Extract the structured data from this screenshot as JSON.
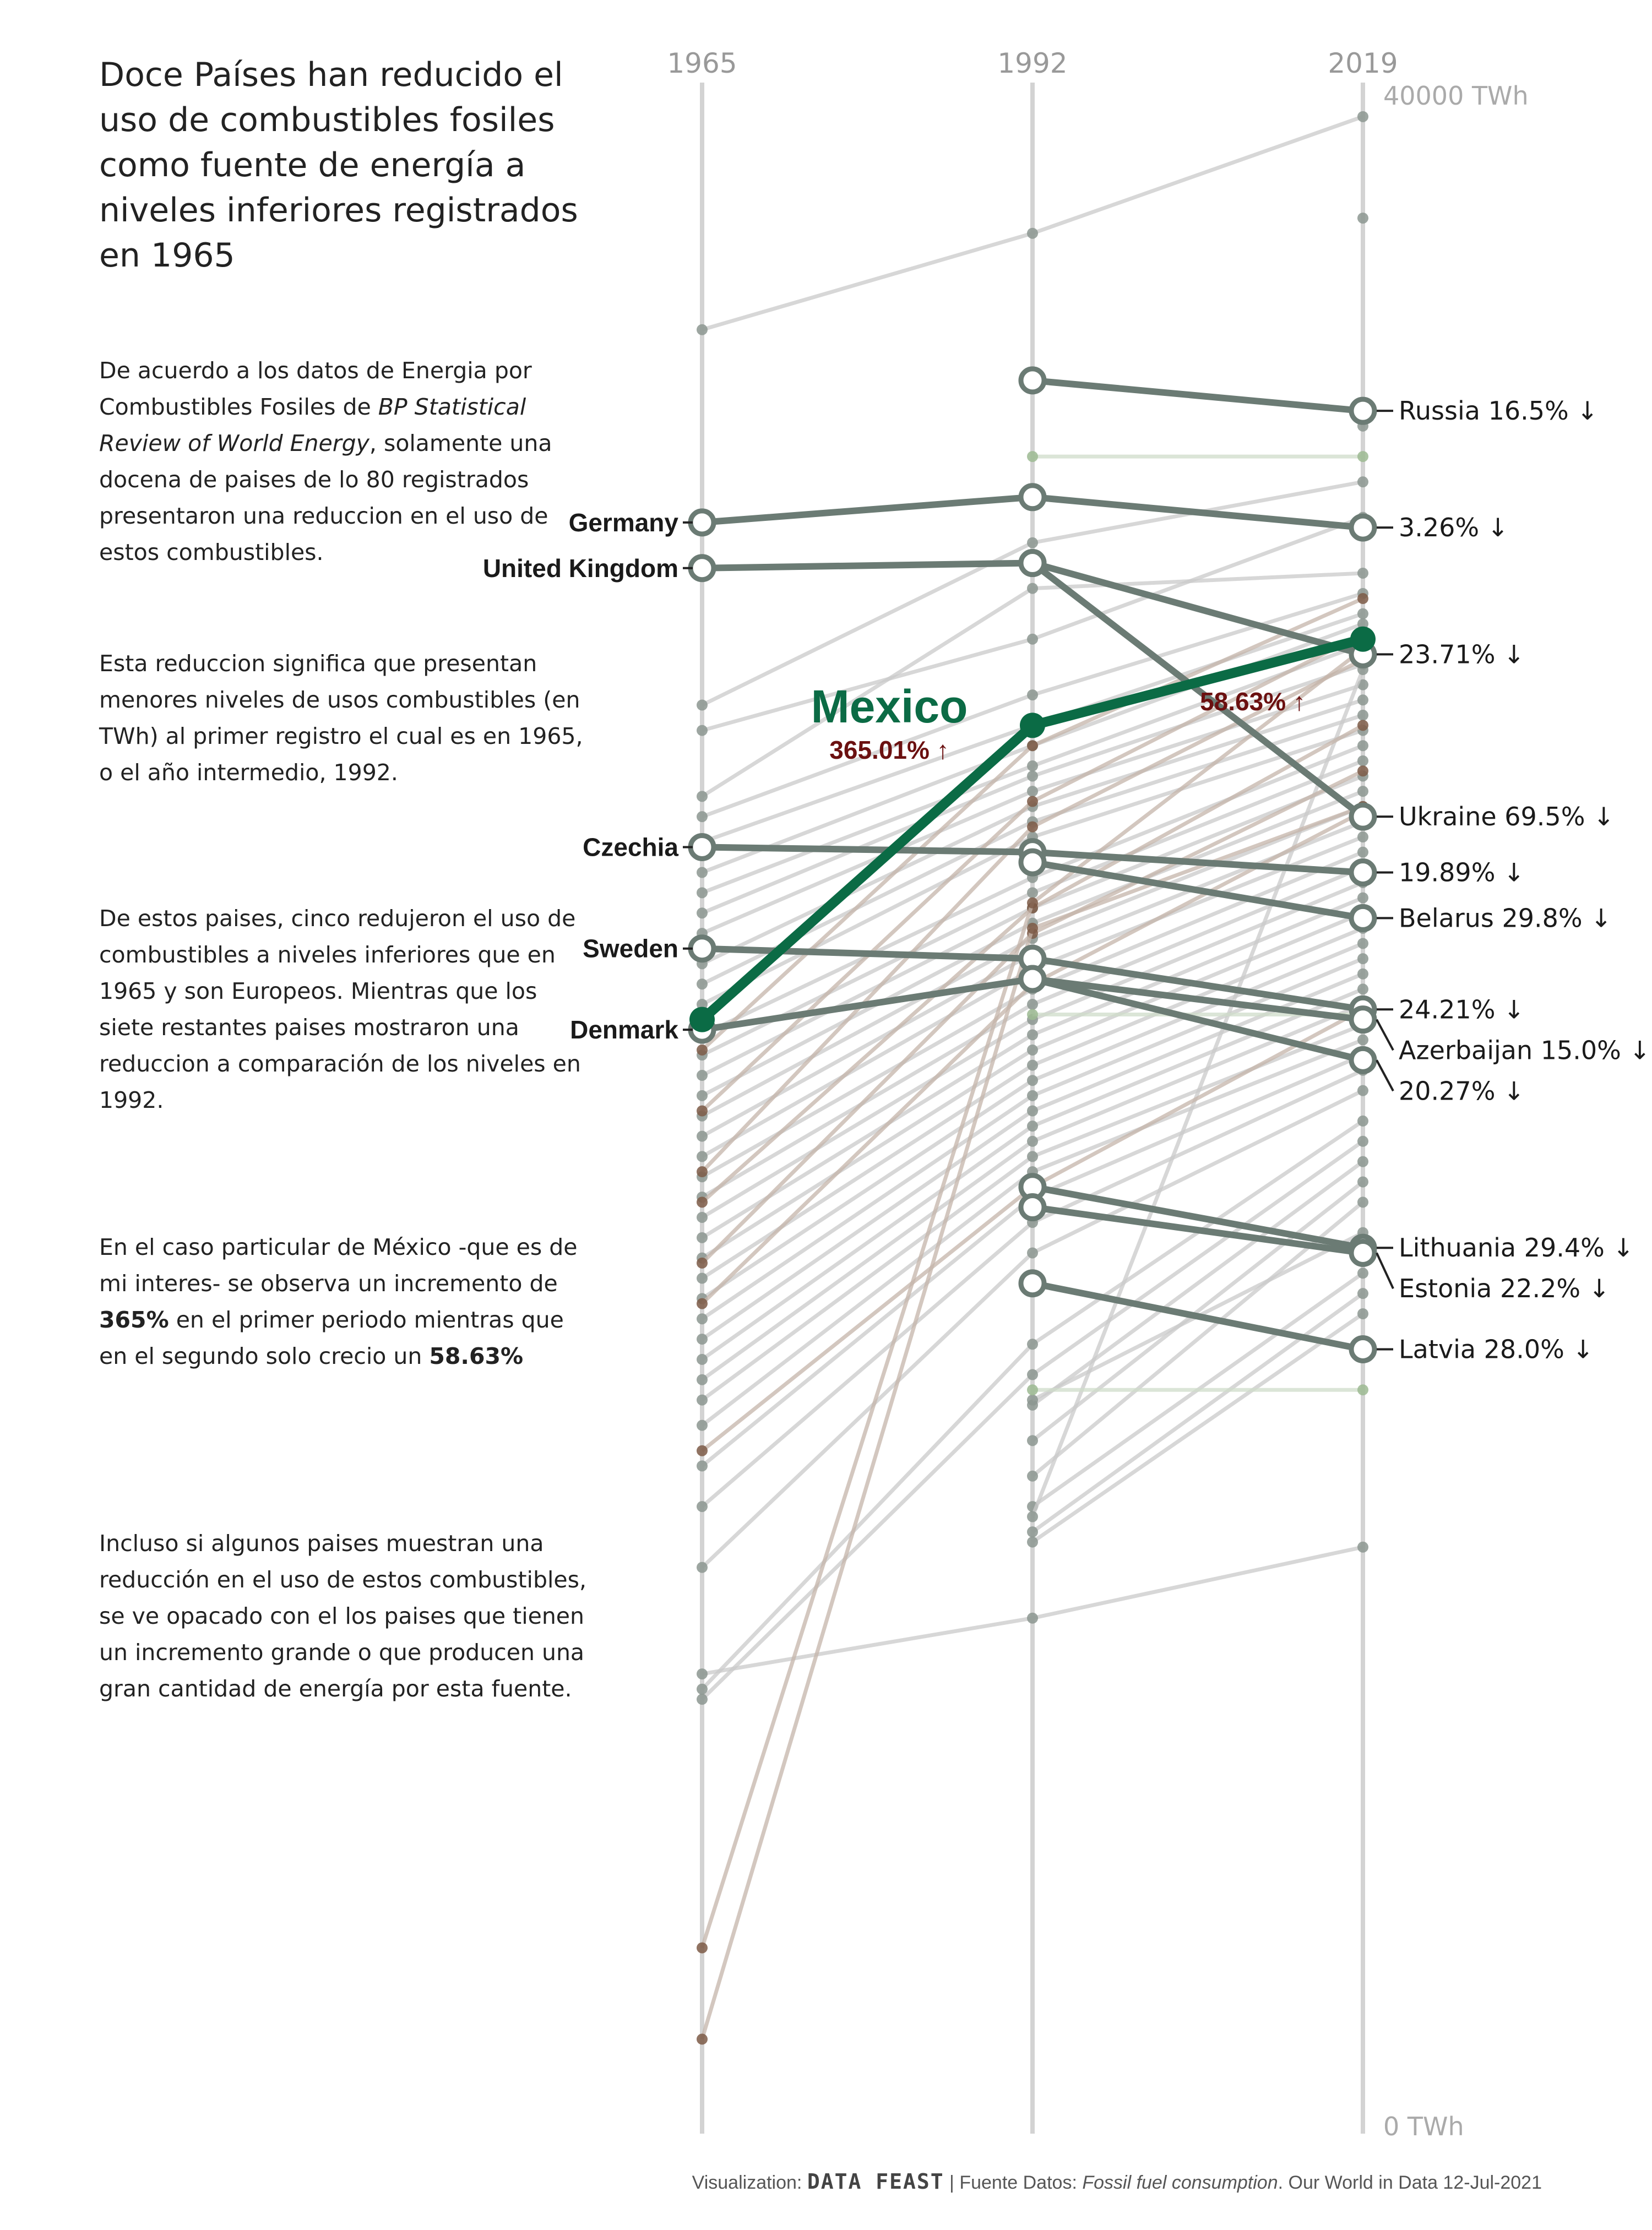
{
  "texts": {
    "title": "Doce Países han reducido el uso de combustibles fosiles como fuente de energía a niveles inferiores registrados en 1965",
    "p1": {
      "a": "De acuerdo a los datos de Energia por Combustibles Fosiles de ",
      "b": "BP Statistical Review of World Energy",
      "c": ", solamente una docena de paises de lo 80 registrados presentaron una reduccion en el uso de estos combustibles."
    },
    "p2": "Esta reduccion significa que presentan menores niveles de usos combustibles (en TWh) al primer registro el cual es en 1965, o el año intermedio, 1992.",
    "p3": "De estos paises, cinco redujeron el uso de combustibles a niveles inferiores que en 1965 y son Europeos. Mientras que los siete restantes paises mostraron una reduccion a comparación de los niveles en 1992.",
    "p4": {
      "a": "En el caso particular de México -que es de mi interes- se observa un incremento de ",
      "b": "365%",
      "c": " en el primer periodo mientras que en el segundo solo crecio un ",
      "d": "58.63%"
    },
    "p5": "Incluso si algunos paises muestran una reducción en el uso de estos combustibles, se ve opacado con el los paises que tienen un incremento grande o que producen una gran cantidad de energía por esta fuente.",
    "footer": {
      "prefix": "Visualization: ",
      "brand": "DATA FEAST",
      "mid": " | Fuente Datos: ",
      "source": "Fossil fuel consumption",
      "suffix": ". Our World in Data 12-Jul-2021"
    }
  },
  "colors": {
    "mexico": "#0b6b45",
    "mexico_pct": "#6b1010",
    "highlight": "#6b7b74",
    "background_lines": "#c9c9c9",
    "axis": "#d3d3d3"
  },
  "chart_data": {
    "type": "slope",
    "x": [
      "1965",
      "1992",
      "2019"
    ],
    "ylim": [
      0,
      40000
    ],
    "axis_labels": {
      "top": "40000 TWh",
      "bottom": "0 TWh"
    },
    "mexico": {
      "name": "Mexico",
      "values": [
        21800,
        27600,
        29300
      ],
      "change_1": "365.01% ↑",
      "change_2": "58.63% ↑"
    },
    "highlighted": [
      {
        "id": "russia",
        "values": [
          null,
          34400,
          33800
        ],
        "left_label": "",
        "right_label": "Russia 16.5% ↓"
      },
      {
        "id": "germany",
        "values": [
          31600,
          32100,
          31500
        ],
        "left_label": "Germany",
        "right_label": "3.26% ↓"
      },
      {
        "id": "united-kingdom",
        "values": [
          30700,
          30800,
          29000
        ],
        "left_label": "United Kingdom",
        "right_label": "23.71% ↓"
      },
      {
        "id": "ukraine",
        "values": [
          null,
          30800,
          25800
        ],
        "left_label": "",
        "right_label": "Ukraine 69.5% ↓"
      },
      {
        "id": "czechia",
        "values": [
          25200,
          25100,
          24700
        ],
        "left_label": "Czechia",
        "right_label": "19.89% ↓"
      },
      {
        "id": "belarus",
        "values": [
          null,
          24900,
          23800
        ],
        "left_label": "",
        "right_label": "Belarus 29.8% ↓"
      },
      {
        "id": "sweden",
        "values": [
          23200,
          23000,
          22000
        ],
        "left_label": "Sweden",
        "right_label": "24.21% ↓"
      },
      {
        "id": "azerbaijan",
        "values": [
          null,
          22600,
          21800
        ],
        "left_label": "",
        "right_label": "Azerbaijan 15.0% ↓"
      },
      {
        "id": "denmark",
        "values": [
          21600,
          22600,
          21000
        ],
        "left_label": "Denmark",
        "right_label": "20.27% ↓"
      },
      {
        "id": "lithuania",
        "values": [
          null,
          18500,
          17300
        ],
        "left_label": "",
        "right_label": "Lithuania 29.4% ↓"
      },
      {
        "id": "estonia",
        "values": [
          null,
          18100,
          17200
        ],
        "left_label": "",
        "right_label": "Estonia 22.2% ↓"
      },
      {
        "id": "latvia",
        "values": [
          null,
          16600,
          15300
        ],
        "left_label": "",
        "right_label": "Latvia 28.0% ↓"
      }
    ],
    "others": [
      [
        35400,
        37300,
        39600
      ],
      [
        null,
        null,
        37600
      ],
      [
        null,
        null,
        33500
      ],
      [
        28000,
        31200,
        32400
      ],
      [
        27500,
        29300,
        31700
      ],
      [
        26200,
        30300,
        30600
      ],
      [
        25800,
        28200,
        30200
      ],
      [
        25300,
        27600,
        29800
      ],
      [
        24700,
        27200,
        29600
      ],
      [
        24300,
        26800,
        29200
      ],
      [
        23900,
        26600,
        28800
      ],
      [
        23500,
        26300,
        28400
      ],
      [
        22900,
        26000,
        28100
      ],
      [
        22500,
        25700,
        27800
      ],
      [
        22100,
        25400,
        27500
      ],
      [
        21500,
        24600,
        27200
      ],
      [
        21100,
        24300,
        26900
      ],
      [
        20700,
        24000,
        26600
      ],
      [
        20300,
        23700,
        26300
      ],
      [
        19900,
        23400,
        26000
      ],
      [
        19500,
        23100,
        25700
      ],
      [
        19100,
        22800,
        25400
      ],
      [
        18700,
        22400,
        25100
      ],
      [
        18300,
        22100,
        24800
      ],
      [
        17900,
        21800,
        24500
      ],
      [
        17500,
        21500,
        24200
      ],
      [
        17100,
        21200,
        23900
      ],
      [
        16700,
        20900,
        23600
      ],
      [
        16300,
        20600,
        23300
      ],
      [
        15900,
        20300,
        23000
      ],
      [
        15500,
        20000,
        22700
      ],
      [
        15100,
        19700,
        22400
      ],
      [
        14700,
        19400,
        22100
      ],
      [
        14300,
        19100,
        21700
      ],
      [
        13800,
        18800,
        21400
      ],
      [
        13000,
        18300,
        21100
      ],
      [
        12200,
        17800,
        20800
      ],
      [
        11000,
        17200,
        20400
      ],
      [
        8900,
        10000,
        11400
      ],
      [
        8600,
        15400,
        19800
      ],
      [
        8400,
        14800,
        19400
      ],
      [
        null,
        14200,
        19000
      ],
      [
        null,
        13500,
        18600
      ],
      [
        null,
        12800,
        18200
      ],
      [
        null,
        12200,
        16800
      ],
      [
        null,
        11700,
        16400
      ],
      [
        null,
        11500,
        16000
      ],
      [
        null,
        12000,
        28700
      ],
      [
        null,
        14300,
        17600
      ]
    ],
    "others_growth": [
      [
        21200,
        27200,
        30100
      ],
      [
        20000,
        26100,
        29400
      ],
      [
        18800,
        25600,
        28900
      ],
      [
        18200,
        24000,
        27600
      ],
      [
        17000,
        23500,
        26700
      ],
      [
        16200,
        22500,
        25900
      ],
      [
        13300,
        18500,
        22000
      ],
      [
        3500,
        24100,
        29100
      ],
      [
        1700,
        23600,
        26000
      ]
    ],
    "flat_green": [
      [
        null,
        32900,
        32900
      ],
      [
        null,
        14500,
        14500
      ],
      [
        null,
        21900,
        21900
      ]
    ]
  }
}
